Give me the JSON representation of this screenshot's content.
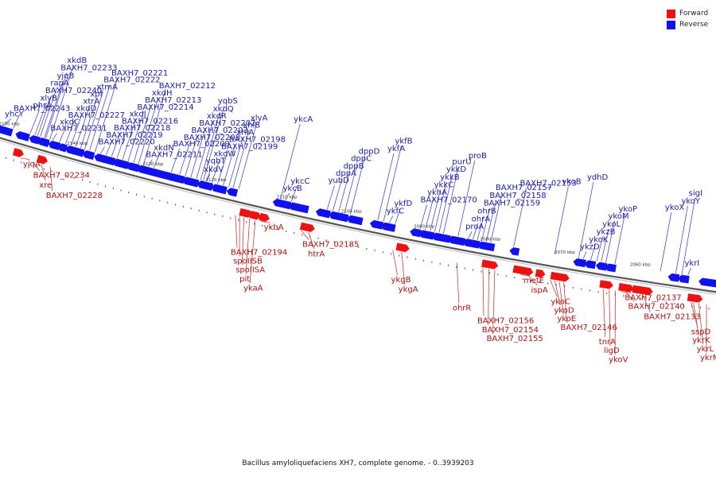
{
  "legend": {
    "forward_label": "Forward",
    "reverse_label": "Reverse",
    "forward_color": "#ee1111",
    "reverse_color": "#1111ee"
  },
  "caption": "Bacillus amyloliquefaciens XH7, complete genome. - 0..3939203",
  "ticks": [
    {
      "label": "2150 kbp",
      "pos": 0.01
    },
    {
      "label": "2140 kbp",
      "pos": 0.11
    },
    {
      "label": "2130 kbp",
      "pos": 0.22
    },
    {
      "label": "2120 kbp",
      "pos": 0.31
    },
    {
      "label": "2110 kbp",
      "pos": 0.41
    },
    {
      "label": "2100 kbp",
      "pos": 0.5
    },
    {
      "label": "2090 kbp",
      "pos": 0.6
    },
    {
      "label": "2080 kbp",
      "pos": 0.69
    },
    {
      "label": "2070 kbp",
      "pos": 0.79
    },
    {
      "label": "2060 kbp",
      "pos": 0.89
    }
  ],
  "reverse_labels": [
    {
      "text": "BAXH7_02240",
      "gene": 0.056
    },
    {
      "text": "BAXH7_02233",
      "gene": 0.068
    },
    {
      "text": "BAXH7_02231",
      "gene": 0.078
    },
    {
      "text": "xkdC",
      "gene": 0.088
    },
    {
      "text": "BAXH7_02227",
      "gene": 0.097
    },
    {
      "text": "xkdD",
      "gene": 0.105
    },
    {
      "text": "xtrA",
      "gene": 0.112
    },
    {
      "text": "xpf",
      "gene": 0.119
    },
    {
      "text": "xtmA",
      "gene": 0.125
    },
    {
      "text": "BAXH7_02222",
      "gene": 0.132
    },
    {
      "text": "BAXH7_02221",
      "gene": 0.14
    },
    {
      "text": "BAXH7_02220",
      "gene": 0.148
    },
    {
      "text": "BAXH7_02219",
      "gene": 0.156
    },
    {
      "text": "BAXH7_02218",
      "gene": 0.164
    },
    {
      "text": "BAXH7_02216",
      "gene": 0.172
    },
    {
      "text": "xkdJ",
      "gene": 0.18
    },
    {
      "text": "BAXH7_02214",
      "gene": 0.188
    },
    {
      "text": "BAXH7_02213",
      "gene": 0.196
    },
    {
      "text": "xkdH",
      "gene": 0.203
    },
    {
      "text": "BAXH7_02212",
      "gene": 0.21
    },
    {
      "text": "BAXH7_02211",
      "gene": 0.217
    },
    {
      "text": "xkdN",
      "gene": 0.225
    },
    {
      "text": "BAXH7_02243",
      "gene": 0.02
    },
    {
      "text": "phrA",
      "gene": 0.045
    },
    {
      "text": "xlyB",
      "gene": 0.052
    },
    {
      "text": "rapA",
      "gene": 0.06
    },
    {
      "text": "yjqB",
      "gene": 0.066
    },
    {
      "text": "xkdB",
      "gene": 0.074
    },
    {
      "text": "yhcY",
      "gene": 0.005
    },
    {
      "text": "BAXH7_02208",
      "gene": 0.262
    },
    {
      "text": "BAXH7_02203",
      "gene": 0.27
    },
    {
      "text": "BAXH7_02202",
      "gene": 0.278
    },
    {
      "text": "BAXH7_02209",
      "gene": 0.25
    },
    {
      "text": "xkdV",
      "gene": 0.3
    },
    {
      "text": "xkdR",
      "gene": 0.286
    },
    {
      "text": "xkdW",
      "gene": 0.308
    },
    {
      "text": "BAXH7_02199",
      "gene": 0.316
    },
    {
      "text": "xkdQ",
      "gene": 0.292
    },
    {
      "text": "BAXH7_02198",
      "gene": 0.324
    },
    {
      "text": "yqbS",
      "gene": 0.296
    },
    {
      "text": "xhlA",
      "gene": 0.332
    },
    {
      "text": "yqbT",
      "gene": 0.3
    },
    {
      "text": "xhlB",
      "gene": 0.338
    },
    {
      "text": "xlyA",
      "gene": 0.346
    },
    {
      "text": "ykcA",
      "gene": 0.405
    },
    {
      "text": "ykcB",
      "gene": 0.412
    },
    {
      "text": "ykcC",
      "gene": 0.42
    },
    {
      "text": "yubD",
      "gene": 0.47
    },
    {
      "text": "dppA",
      "gene": 0.478
    },
    {
      "text": "dppB",
      "gene": 0.486
    },
    {
      "text": "dppC",
      "gene": 0.494
    },
    {
      "text": "dppD",
      "gene": 0.502
    },
    {
      "text": "ykfA",
      "gene": 0.54
    },
    {
      "text": "ykfB",
      "gene": 0.548
    },
    {
      "text": "ykfC",
      "gene": 0.556
    },
    {
      "text": "ykfD",
      "gene": 0.564
    },
    {
      "text": "BAXH7_02170",
      "gene": 0.598
    },
    {
      "text": "ykhA",
      "gene": 0.605
    },
    {
      "text": "ykkC",
      "gene": 0.612
    },
    {
      "text": "ykkB",
      "gene": 0.618
    },
    {
      "text": "ykkD",
      "gene": 0.624
    },
    {
      "text": "purU",
      "gene": 0.63
    },
    {
      "text": "proA",
      "gene": 0.664
    },
    {
      "text": "ohrA",
      "gene": 0.67
    },
    {
      "text": "proB",
      "gene": 0.65
    },
    {
      "text": "ohrB",
      "gene": 0.676
    },
    {
      "text": "BAXH7_02159",
      "gene": 0.682
    },
    {
      "text": "BAXH7_02158",
      "gene": 0.688
    },
    {
      "text": "BAXH7_02157",
      "gene": 0.694
    },
    {
      "text": "BAXH7_02153",
      "gene": 0.725
    },
    {
      "text": "ykoB",
      "gene": 0.78
    },
    {
      "text": "ykoK",
      "gene": 0.828
    },
    {
      "text": "ykzB",
      "gene": 0.836
    },
    {
      "text": "ykoL",
      "gene": 0.842
    },
    {
      "text": "ykzD",
      "gene": 0.818
    },
    {
      "text": "ykoM",
      "gene": 0.848
    },
    {
      "text": "ydhD",
      "gene": 0.812
    },
    {
      "text": "ykoP",
      "gene": 0.86
    },
    {
      "text": "ykoX",
      "gene": 0.92
    },
    {
      "text": "ykoY",
      "gene": 0.94
    },
    {
      "text": "sigI",
      "gene": 0.948
    },
    {
      "text": "ykrI",
      "gene": 0.956
    }
  ],
  "forward_labels": [
    {
      "text": "yjqA",
      "gene": 0.042
    },
    {
      "text": "BAXH7_02234",
      "gene": 0.06
    },
    {
      "text": "xre",
      "gene": 0.072
    },
    {
      "text": "BAXH7_02228",
      "gene": 0.085
    },
    {
      "text": "BAXH7_02194",
      "gene": 0.35
    },
    {
      "text": "spoIISB",
      "gene": 0.356
    },
    {
      "text": "spoIISA",
      "gene": 0.362
    },
    {
      "text": "pit",
      "gene": 0.37
    },
    {
      "text": "ykbA",
      "gene": 0.386
    },
    {
      "text": "ykaA",
      "gene": 0.378
    },
    {
      "text": "BAXH7_02185",
      "gene": 0.442
    },
    {
      "text": "htrA",
      "gene": 0.452
    },
    {
      "text": "ykgB",
      "gene": 0.568
    },
    {
      "text": "ykgA",
      "gene": 0.58
    },
    {
      "text": "ohrR",
      "gene": 0.655
    },
    {
      "text": "BAXH7_02156",
      "gene": 0.69
    },
    {
      "text": "metE",
      "gene": 0.74
    },
    {
      "text": "BAXH7_02154",
      "gene": 0.698
    },
    {
      "text": "BAXH7_02155",
      "gene": 0.706
    },
    {
      "text": "ispA",
      "gene": 0.752
    },
    {
      "text": "ykoC",
      "gene": 0.78
    },
    {
      "text": "ykoE",
      "gene": 0.792
    },
    {
      "text": "BAXH7_02146",
      "gene": 0.798
    },
    {
      "text": "ykoD",
      "gene": 0.786
    },
    {
      "text": "tnrA",
      "gene": 0.85
    },
    {
      "text": "ykoV",
      "gene": 0.866
    },
    {
      "text": "ligD",
      "gene": 0.858
    },
    {
      "text": "BAXH7_02137",
      "gene": 0.874
    },
    {
      "text": "BAXH7_02140",
      "gene": 0.88
    },
    {
      "text": "BAXH7_02133",
      "gene": 0.902
    },
    {
      "text": "sspD",
      "gene": 0.965
    },
    {
      "text": "ykrM",
      "gene": 0.985
    },
    {
      "text": "ykrL",
      "gene": 0.975
    },
    {
      "text": "ykrK",
      "gene": 0.968
    }
  ],
  "reverse_genes": [
    {
      "s": 0.0,
      "e": 0.02
    },
    {
      "s": 0.03,
      "e": 0.045
    },
    {
      "s": 0.05,
      "e": 0.06
    },
    {
      "s": 0.062,
      "e": 0.074
    },
    {
      "s": 0.078,
      "e": 0.09
    },
    {
      "s": 0.092,
      "e": 0.1
    },
    {
      "s": 0.103,
      "e": 0.125
    },
    {
      "s": 0.128,
      "e": 0.14
    },
    {
      "s": 0.145,
      "e": 0.17
    },
    {
      "s": 0.172,
      "e": 0.19
    },
    {
      "s": 0.192,
      "e": 0.205
    },
    {
      "s": 0.207,
      "e": 0.27
    },
    {
      "s": 0.272,
      "e": 0.29
    },
    {
      "s": 0.293,
      "e": 0.31
    },
    {
      "s": 0.313,
      "e": 0.33
    },
    {
      "s": 0.335,
      "e": 0.345
    },
    {
      "s": 0.4,
      "e": 0.42
    },
    {
      "s": 0.422,
      "e": 0.445
    },
    {
      "s": 0.46,
      "e": 0.475
    },
    {
      "s": 0.478,
      "e": 0.5
    },
    {
      "s": 0.503,
      "e": 0.52
    },
    {
      "s": 0.535,
      "e": 0.548
    },
    {
      "s": 0.55,
      "e": 0.565
    },
    {
      "s": 0.59,
      "e": 0.6
    },
    {
      "s": 0.602,
      "e": 0.618
    },
    {
      "s": 0.62,
      "e": 0.64
    },
    {
      "s": 0.642,
      "e": 0.66
    },
    {
      "s": 0.662,
      "e": 0.68
    },
    {
      "s": 0.682,
      "e": 0.7
    },
    {
      "s": 0.725,
      "e": 0.733
    },
    {
      "s": 0.81,
      "e": 0.822
    },
    {
      "s": 0.825,
      "e": 0.835
    },
    {
      "s": 0.84,
      "e": 0.85
    },
    {
      "s": 0.852,
      "e": 0.862
    },
    {
      "s": 0.935,
      "e": 0.945
    },
    {
      "s": 0.948,
      "e": 0.958
    },
    {
      "s": 0.975,
      "e": 1.0
    }
  ],
  "forward_genes": [
    {
      "s": 0.03,
      "e": 0.04
    },
    {
      "s": 0.065,
      "e": 0.075
    },
    {
      "s": 0.355,
      "e": 0.368
    },
    {
      "s": 0.37,
      "e": 0.38
    },
    {
      "s": 0.383,
      "e": 0.392
    },
    {
      "s": 0.44,
      "e": 0.455
    },
    {
      "s": 0.572,
      "e": 0.585
    },
    {
      "s": 0.688,
      "e": 0.705
    },
    {
      "s": 0.73,
      "e": 0.752
    },
    {
      "s": 0.76,
      "e": 0.768
    },
    {
      "s": 0.78,
      "e": 0.8
    },
    {
      "s": 0.845,
      "e": 0.858
    },
    {
      "s": 0.87,
      "e": 0.885
    },
    {
      "s": 0.888,
      "e": 0.91
    },
    {
      "s": 0.96,
      "e": 0.975
    }
  ]
}
